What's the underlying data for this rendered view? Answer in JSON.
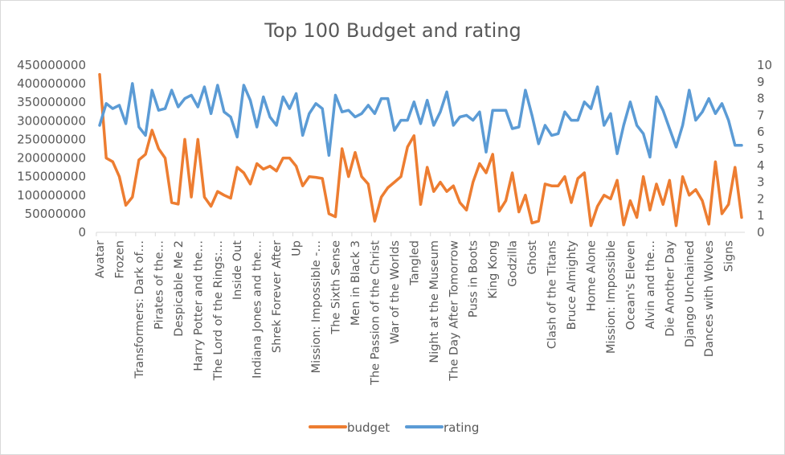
{
  "chart_data": {
    "type": "line",
    "title": "Top 100 Budget and rating",
    "xlabel": "",
    "ylabel": "",
    "grid": false,
    "legend_position": "bottom",
    "ylim": [
      0,
      450000000
    ],
    "y2lim": [
      0,
      10
    ],
    "y_ticks": [
      "0",
      "50000000",
      "100000000",
      "150000000",
      "200000000",
      "250000000",
      "300000000",
      "350000000",
      "400000000",
      "450000000"
    ],
    "y2_ticks": [
      "0",
      "1",
      "2",
      "3",
      "4",
      "5",
      "6",
      "7",
      "8",
      "9",
      "10"
    ],
    "category_labels": [
      {
        "index": 0,
        "text": "Avatar"
      },
      {
        "index": 3,
        "text": "Frozen"
      },
      {
        "index": 6,
        "text": "Transformers: Dark of…"
      },
      {
        "index": 9,
        "text": "Pirates of the…"
      },
      {
        "index": 12,
        "text": "Despicable Me 2"
      },
      {
        "index": 15,
        "text": "Harry Potter and the…"
      },
      {
        "index": 18,
        "text": "The Lord of the Rings:…"
      },
      {
        "index": 21,
        "text": "Inside Out"
      },
      {
        "index": 24,
        "text": "Indiana Jones and the…"
      },
      {
        "index": 27,
        "text": "Shrek Forever After"
      },
      {
        "index": 30,
        "text": "Up"
      },
      {
        "index": 33,
        "text": "Mission: Impossible -…"
      },
      {
        "index": 36,
        "text": "The Sixth Sense"
      },
      {
        "index": 39,
        "text": "Men in Black 3"
      },
      {
        "index": 42,
        "text": "The Passion of the Christ"
      },
      {
        "index": 45,
        "text": "War of the Worlds"
      },
      {
        "index": 48,
        "text": "Tangled"
      },
      {
        "index": 51,
        "text": "Night at the Museum"
      },
      {
        "index": 54,
        "text": "The Day After Tomorrow"
      },
      {
        "index": 57,
        "text": "Puss in Boots"
      },
      {
        "index": 60,
        "text": "King Kong"
      },
      {
        "index": 63,
        "text": "Godzilla"
      },
      {
        "index": 66,
        "text": "Ghost"
      },
      {
        "index": 69,
        "text": "Clash of the Titans"
      },
      {
        "index": 72,
        "text": "Bruce Almighty"
      },
      {
        "index": 75,
        "text": "Home Alone"
      },
      {
        "index": 78,
        "text": "Mission: Impossible"
      },
      {
        "index": 81,
        "text": "Ocean's Eleven"
      },
      {
        "index": 84,
        "text": "Alvin and the…"
      },
      {
        "index": 87,
        "text": "Die Another Day"
      },
      {
        "index": 90,
        "text": "Django Unchained"
      },
      {
        "index": 93,
        "text": "Dances with Wolves"
      },
      {
        "index": 96,
        "text": "Signs"
      }
    ],
    "series": [
      {
        "name": "budget",
        "axis": "left",
        "color": "#ed7d31",
        "values": [
          425000000,
          200000000,
          190000000,
          150000000,
          73000000,
          95000000,
          195000000,
          210000000,
          275000000,
          225000000,
          200000000,
          80000000,
          76000000,
          250000000,
          95000000,
          250000000,
          95000000,
          70000000,
          110000000,
          100000000,
          92000000,
          175000000,
          160000000,
          130000000,
          185000000,
          170000000,
          178000000,
          165000000,
          200000000,
          200000000,
          178000000,
          125000000,
          150000000,
          148000000,
          145000000,
          50000000,
          42000000,
          225000000,
          150000000,
          215000000,
          150000000,
          130000000,
          30000000,
          95000000,
          120000000,
          135000000,
          150000000,
          230000000,
          260000000,
          75000000,
          175000000,
          110000000,
          135000000,
          110000000,
          125000000,
          80000000,
          60000000,
          135000000,
          185000000,
          160000000,
          210000000,
          57000000,
          85000000,
          160000000,
          55000000,
          100000000,
          25000000,
          30000000,
          130000000,
          125000000,
          125000000,
          150000000,
          80000000,
          145000000,
          160000000,
          18000000,
          70000000,
          100000000,
          90000000,
          140000000,
          20000000,
          85000000,
          40000000,
          150000000,
          60000000,
          130000000,
          75000000,
          140000000,
          18000000,
          150000000,
          100000000,
          115000000,
          85000000,
          22000000,
          190000000,
          50000000,
          75000000,
          175000000,
          40000000
        ]
      },
      {
        "name": "rating",
        "axis": "right",
        "color": "#5b9bd5",
        "values": [
          6.4,
          7.7,
          7.4,
          7.6,
          6.5,
          8.9,
          6.3,
          5.8,
          8.5,
          7.3,
          7.4,
          8.5,
          7.5,
          8.0,
          8.2,
          7.5,
          8.7,
          7.1,
          8.8,
          7.2,
          6.9,
          5.7,
          8.8,
          7.9,
          6.3,
          8.1,
          6.9,
          6.4,
          8.1,
          7.4,
          8.3,
          5.8,
          7.1,
          7.7,
          7.4,
          4.6,
          8.2,
          7.2,
          7.3,
          6.9,
          7.1,
          7.6,
          7.1,
          8.0,
          8.0,
          6.1,
          6.7,
          6.7,
          7.8,
          6.5,
          7.9,
          6.4,
          7.2,
          8.4,
          6.4,
          6.9,
          7.0,
          6.7,
          7.2,
          4.8,
          7.3,
          7.3,
          7.3,
          6.2,
          6.3,
          8.5,
          7.0,
          5.3,
          6.4,
          5.8,
          5.9,
          7.2,
          6.7,
          6.7,
          7.8,
          7.4,
          8.7,
          6.4,
          7.1,
          4.7,
          6.4,
          7.8,
          6.4,
          5.9,
          4.5,
          8.1,
          7.3,
          6.2,
          5.1,
          6.4,
          8.5,
          6.7,
          7.2,
          8.0,
          7.1,
          7.7,
          6.7,
          5.2,
          5.2
        ]
      }
    ]
  }
}
